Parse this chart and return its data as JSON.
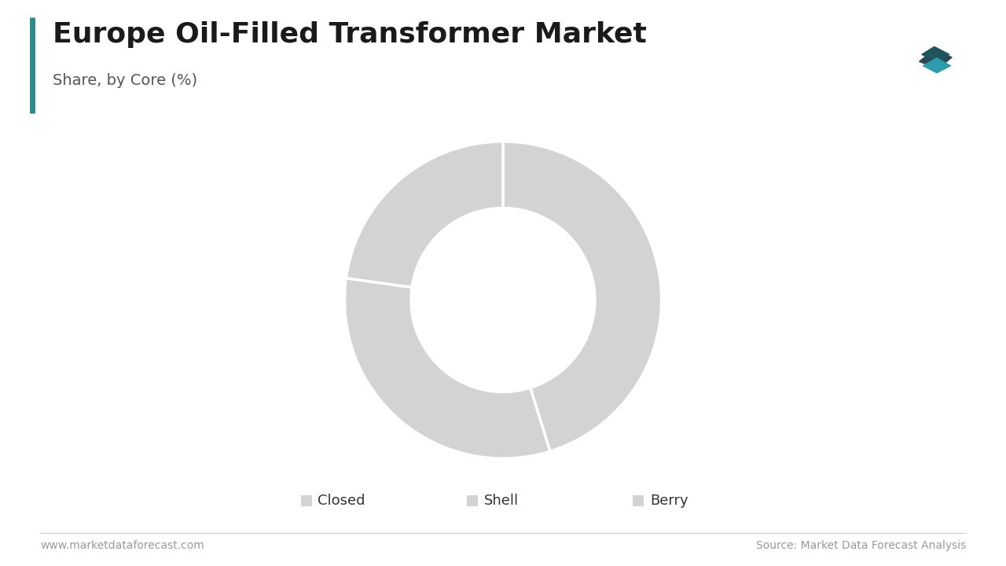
{
  "title": "Europe Oil-Filled Transformer Market",
  "subtitle": "Share, by Core (%)",
  "segments": [
    "Closed",
    "Shell",
    "Berry"
  ],
  "values": [
    45.2,
    32.0,
    22.8
  ],
  "wedge_color": "#d3d3d3",
  "background_color": "#ffffff",
  "title_fontsize": 26,
  "subtitle_fontsize": 14,
  "legend_fontsize": 13,
  "footer_left": "www.marketdataforecast.com",
  "footer_right": "Source: Market Data Forecast Analysis",
  "footer_fontsize": 10,
  "accent_color": "#2d8a8a",
  "startangle": 90
}
